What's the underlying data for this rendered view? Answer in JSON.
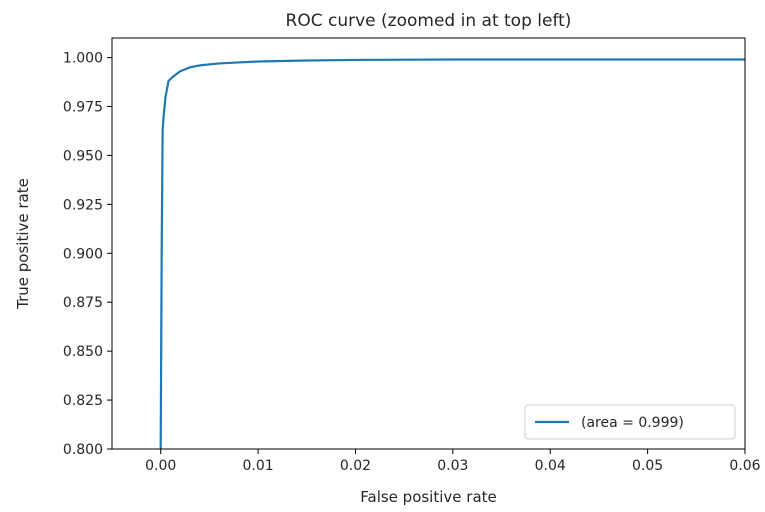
{
  "chart_data": {
    "type": "line",
    "title": "ROC curve (zoomed in at top left)",
    "xlabel": "False positive rate",
    "ylabel": "True positive rate",
    "xlim": [
      -0.005,
      0.06
    ],
    "ylim": [
      0.8,
      1.01
    ],
    "x_ticks": [
      0.0,
      0.01,
      0.02,
      0.03,
      0.04,
      0.05,
      0.06
    ],
    "x_tick_labels": [
      "0.00",
      "0.01",
      "0.02",
      "0.03",
      "0.04",
      "0.05",
      "0.06"
    ],
    "y_ticks": [
      0.8,
      0.825,
      0.85,
      0.875,
      0.9,
      0.925,
      0.95,
      0.975,
      1.0
    ],
    "y_tick_labels": [
      "0.800",
      "0.825",
      "0.850",
      "0.875",
      "0.900",
      "0.925",
      "0.950",
      "0.975",
      "1.000"
    ],
    "grid": false,
    "legend_position": "lower-right",
    "series": [
      {
        "name": "(area = 0.999)",
        "color": "#1f77b4",
        "x": [
          0.0,
          0.0001,
          0.0002,
          0.0003,
          0.0005,
          0.0008,
          0.0012,
          0.002,
          0.003,
          0.004,
          0.006,
          0.008,
          0.01,
          0.015,
          0.02,
          0.03,
          0.04,
          0.05,
          0.06
        ],
        "y": [
          0.8,
          0.9,
          0.963,
          0.97,
          0.98,
          0.988,
          0.99,
          0.993,
          0.995,
          0.996,
          0.997,
          0.9975,
          0.998,
          0.9985,
          0.9988,
          0.999,
          0.999,
          0.999,
          0.999
        ]
      }
    ]
  }
}
